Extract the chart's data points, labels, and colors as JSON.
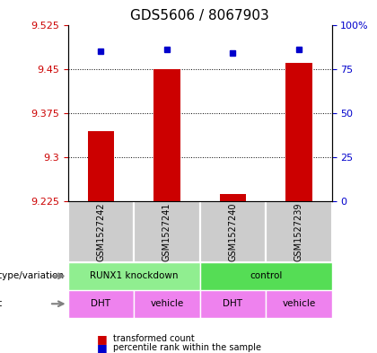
{
  "title": "GDS5606 / 8067903",
  "samples": [
    "GSM1527242",
    "GSM1527241",
    "GSM1527240",
    "GSM1527239"
  ],
  "transformed_counts": [
    9.345,
    9.45,
    9.238,
    9.46
  ],
  "percentile_ranks": [
    85,
    86,
    84,
    86
  ],
  "ylim_left": [
    9.225,
    9.525
  ],
  "yticks_left": [
    9.225,
    9.3,
    9.375,
    9.45,
    9.525
  ],
  "yticks_right": [
    0,
    25,
    50,
    75,
    100
  ],
  "bar_color": "#cc0000",
  "dot_color": "#0000cc",
  "genotype_labels": [
    "RUNX1 knockdown",
    "control"
  ],
  "agent_labels": [
    "DHT",
    "vehicle",
    "DHT",
    "vehicle"
  ],
  "agent_color": "#ee82ee",
  "sample_bg_color": "#cccccc",
  "legend_red_label": "transformed count",
  "legend_blue_label": "percentile rank within the sample",
  "left_label_color": "#cc0000",
  "right_label_color": "#0000cc",
  "gridline_values": [
    9.3,
    9.375,
    9.45
  ],
  "genotype_color_left": "#90EE90",
  "genotype_color_right": "#55dd55"
}
